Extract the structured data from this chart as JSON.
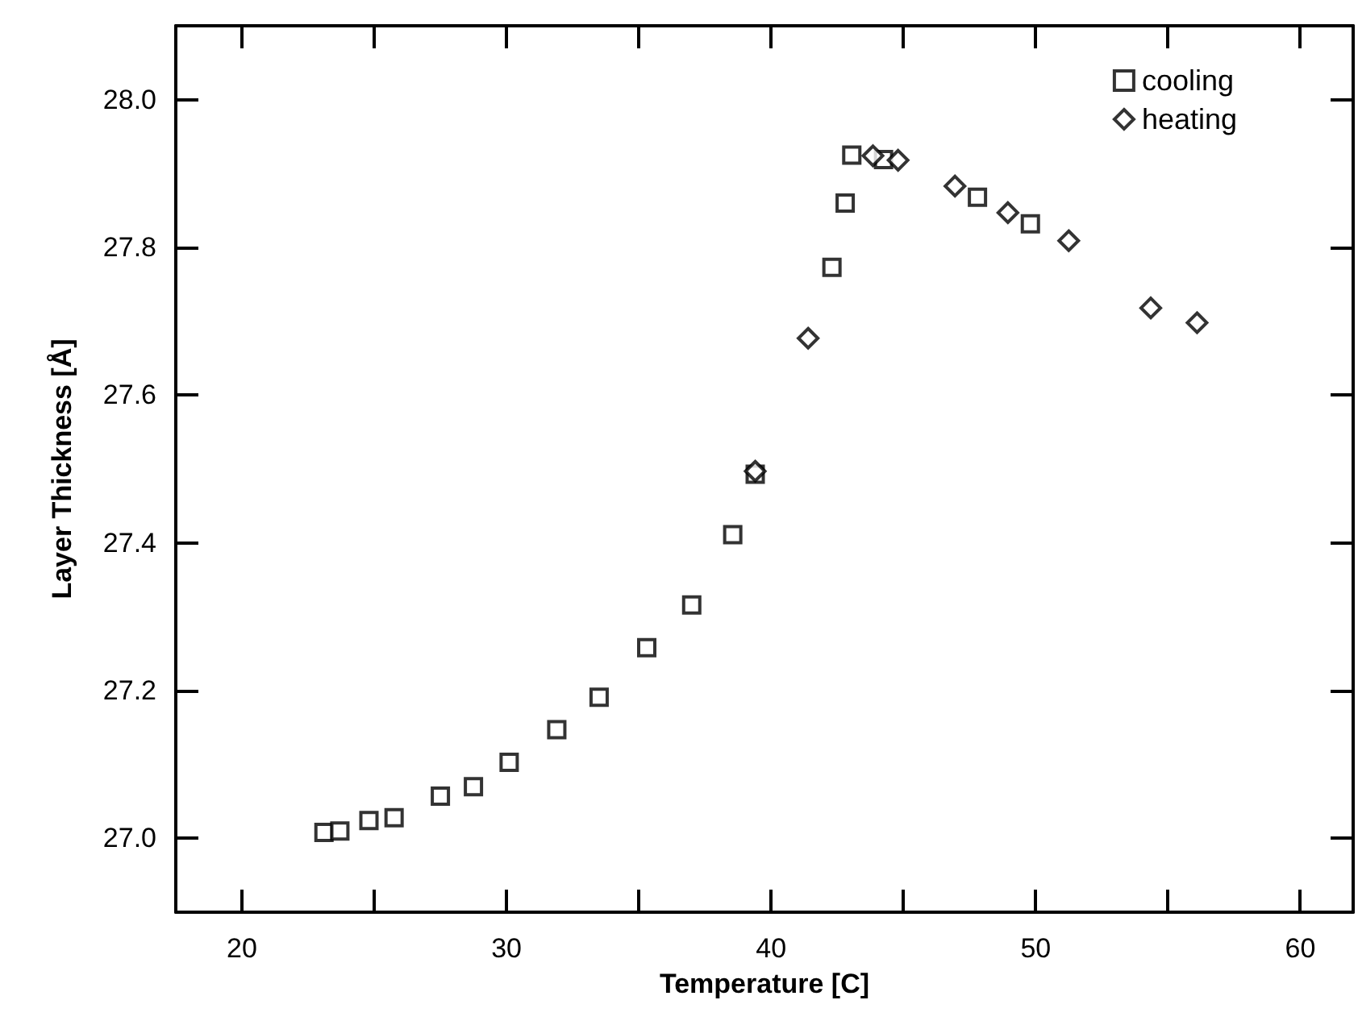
{
  "chart_data": {
    "type": "scatter",
    "xlabel": "Temperature [C]",
    "ylabel": "Layer Thickness [Å]",
    "xlim": [
      17.5,
      62
    ],
    "ylim": [
      26.9,
      28.1
    ],
    "xticks": [
      20,
      {
        "value": 25,
        "label": null
      },
      30,
      {
        "value": 35,
        "label": null
      },
      40,
      {
        "value": 45,
        "label": null
      },
      50,
      {
        "value": 55,
        "label": null
      },
      60
    ],
    "yticks": [
      {
        "value": 27,
        "label": "27.0"
      },
      {
        "value": 27.2,
        "label": "27.2"
      },
      {
        "value": 27.4,
        "label": "27.4"
      },
      {
        "value": 27.6,
        "label": "27.6"
      },
      {
        "value": 27.8,
        "label": "27.8"
      },
      {
        "value": 28,
        "label": "28.0"
      }
    ],
    "grid": false,
    "legend": "top right",
    "series": [
      {
        "name": "cooling",
        "color": "#000000",
        "marker": "square",
        "x": [
          23.1,
          23.7,
          24.8,
          25.75,
          27.5,
          28.75,
          30.1,
          31.9,
          33.5,
          35.3,
          37.0,
          38.55,
          39.4,
          42.3,
          42.8,
          43.05,
          44.25,
          47.8,
          49.8
        ],
        "values": [
          27.008,
          27.01,
          27.024,
          27.028,
          27.057,
          27.07,
          27.103,
          27.147,
          27.191,
          27.258,
          27.316,
          27.411,
          27.493,
          27.773,
          27.86,
          27.925,
          27.919,
          27.868,
          27.832
        ]
      },
      {
        "name": "heating",
        "color": "#000000",
        "marker": "diamond",
        "x": [
          39.4,
          41.4,
          43.85,
          44.8,
          46.95,
          48.95,
          51.25,
          54.35,
          56.1
        ],
        "values": [
          27.497,
          27.677,
          27.924,
          27.918,
          27.883,
          27.847,
          27.809,
          27.718,
          27.698
        ]
      }
    ]
  }
}
